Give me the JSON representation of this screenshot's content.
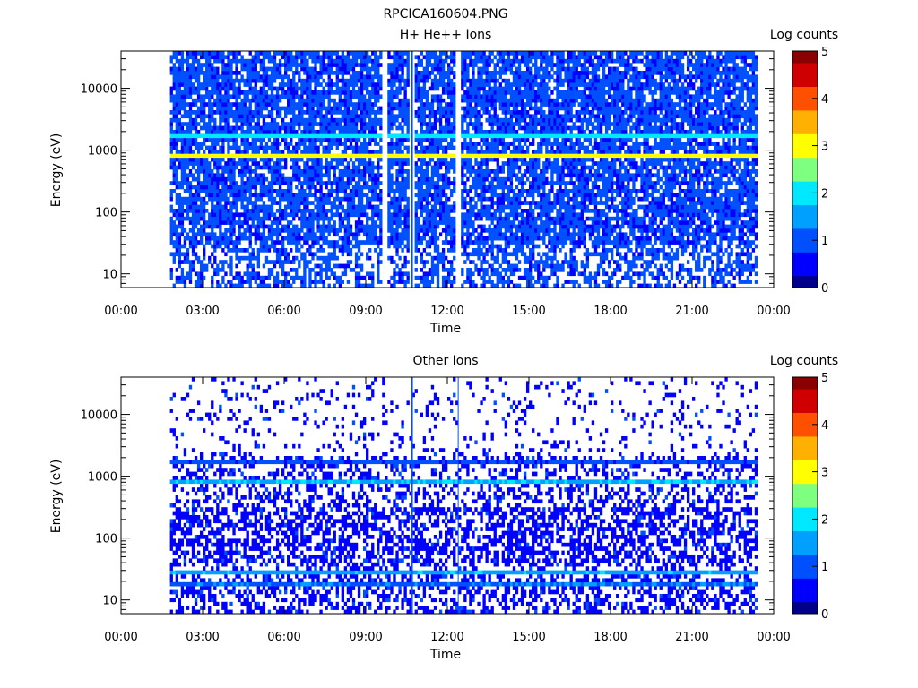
{
  "figure_title": "RPCICA160604.PNG",
  "colors": {
    "colormap": [
      "#00008b",
      "#0000ff",
      "#0050ff",
      "#00a0ff",
      "#00e8ff",
      "#7fff7f",
      "#ffff00",
      "#ffb000",
      "#ff5000",
      "#d00000",
      "#8b0000"
    ],
    "background": "#ffffff",
    "axes": "#000000"
  },
  "chart_data": [
    {
      "type": "heatmap",
      "title": "H+ He++ Ions",
      "xlabel": "Time",
      "ylabel": "Energy (eV)",
      "x_ticks": [
        "00:00",
        "03:00",
        "06:00",
        "09:00",
        "12:00",
        "15:00",
        "18:00",
        "21:00",
        "00:00"
      ],
      "x_range_hours": [
        0,
        24
      ],
      "y_scale": "log",
      "y_ticks": [
        "10",
        "100",
        "1000",
        "10000"
      ],
      "y_range_eV": [
        6,
        40000
      ],
      "data_time_range_hours": [
        1.8,
        23.4
      ],
      "colorbar": {
        "label": "Log counts",
        "ticks": [
          "0",
          "1",
          "2",
          "3",
          "4",
          "5"
        ],
        "range": [
          0,
          5
        ]
      },
      "bands": [
        {
          "energy_eV": 800,
          "log_counts": 3.0
        },
        {
          "energy_eV": 1700,
          "log_counts": 2.0
        }
      ],
      "background_log_counts": [
        0.6,
        1.2
      ],
      "gap_times_hours": [
        9.7,
        10.7,
        12.4
      ],
      "spike_time_hours": 10.7
    },
    {
      "type": "heatmap",
      "title": "Other Ions",
      "xlabel": "Time",
      "ylabel": "Energy (eV)",
      "x_ticks": [
        "00:00",
        "03:00",
        "06:00",
        "09:00",
        "12:00",
        "15:00",
        "18:00",
        "21:00",
        "00:00"
      ],
      "x_range_hours": [
        0,
        24
      ],
      "y_scale": "log",
      "y_ticks": [
        "10",
        "100",
        "1000",
        "10000"
      ],
      "y_range_eV": [
        6,
        40000
      ],
      "data_time_range_hours": [
        1.8,
        23.4
      ],
      "colorbar": {
        "label": "Log counts",
        "ticks": [
          "0",
          "1",
          "2",
          "3",
          "4",
          "5"
        ],
        "range": [
          0,
          5
        ]
      },
      "bands": [
        {
          "energy_eV": 800,
          "log_counts": 1.7
        },
        {
          "energy_eV": 1700,
          "log_counts": 0.9
        },
        {
          "energy_eV": 28,
          "log_counts": 1.6
        },
        {
          "energy_eV": 18,
          "log_counts": 1.2
        }
      ],
      "background_log_counts": [
        0.3,
        0.8
      ],
      "gap_times_hours": [
        12.4
      ],
      "spike_time_hours": 10.7
    }
  ]
}
